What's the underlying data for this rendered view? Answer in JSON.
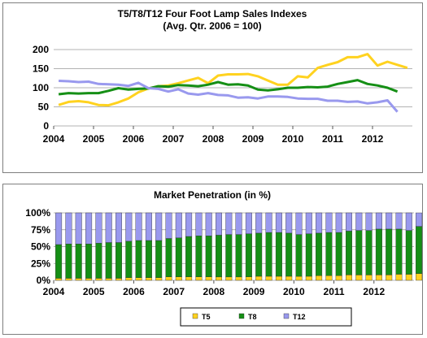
{
  "chart_data": [
    {
      "type": "line",
      "title": "T5/T8/T12 Four Foot Lamp Sales Indexes",
      "subtitle": "(Avg. Qtr. 2006 = 100)",
      "x_labels": [
        "2004",
        "2005",
        "2006",
        "2007",
        "2008",
        "2009",
        "2010",
        "2011",
        "2012"
      ],
      "y_ticks": [
        0,
        50,
        100,
        150,
        200
      ],
      "ylim": [
        0,
        200
      ],
      "grid": "horizontal",
      "series": [
        {
          "key": "t5",
          "color": "#FFD21F",
          "values": [
            55,
            63,
            65,
            62,
            55,
            54,
            62,
            72,
            88,
            98,
            104,
            106,
            112,
            119,
            126,
            112,
            132,
            135,
            135,
            136,
            130,
            119,
            108,
            108,
            130,
            127,
            152,
            160,
            167,
            180,
            180,
            188,
            158,
            168,
            160,
            152
          ]
        },
        {
          "key": "t8",
          "color": "#158F15",
          "values": [
            83,
            86,
            85,
            86,
            86,
            92,
            99,
            95,
            97,
            98,
            104,
            103,
            107,
            106,
            104,
            108,
            115,
            108,
            109,
            106,
            95,
            93,
            96,
            100,
            100,
            102,
            101,
            103,
            110,
            115,
            120,
            110,
            106,
            100,
            90
          ]
        },
        {
          "key": "t12",
          "color": "#9999EE",
          "values": [
            118,
            117,
            115,
            116,
            110,
            109,
            108,
            105,
            113,
            99,
            97,
            90,
            96,
            85,
            82,
            86,
            81,
            80,
            74,
            75,
            72,
            77,
            77,
            76,
            72,
            71,
            71,
            66,
            66,
            63,
            64,
            59,
            62,
            67,
            37
          ]
        }
      ]
    },
    {
      "type": "bar",
      "stacked": true,
      "title": "Market Penetration (in %)",
      "x_labels": [
        "2004",
        "2005",
        "2006",
        "2007",
        "2008",
        "2009",
        "2010",
        "2011",
        "2012"
      ],
      "y_ticks": [
        "0%",
        "25%",
        "50%",
        "75%",
        "100%"
      ],
      "ylim": [
        0,
        100
      ],
      "grid": "horizontal",
      "legend_position": "bottom",
      "series": [
        {
          "name": "T5",
          "color": "#FFD21F",
          "values": [
            3,
            3,
            3,
            3,
            3,
            3,
            3,
            4,
            4,
            4,
            4,
            5,
            5,
            5,
            5,
            5,
            5,
            5,
            5,
            5,
            6,
            6,
            6,
            6,
            6,
            6,
            7,
            7,
            7,
            8,
            8,
            8,
            8,
            8,
            9,
            9,
            10
          ]
        },
        {
          "name": "T8",
          "color": "#158F15",
          "values": [
            50,
            51,
            51,
            51,
            52,
            53,
            53,
            54,
            55,
            55,
            55,
            57,
            58,
            60,
            61,
            61,
            62,
            63,
            63,
            64,
            64,
            65,
            65,
            64,
            62,
            63,
            63,
            64,
            64,
            65,
            66,
            66,
            68,
            68,
            67,
            65,
            70
          ]
        },
        {
          "name": "T12",
          "color": "#9999EE",
          "values": [
            47,
            46,
            46,
            46,
            45,
            44,
            44,
            42,
            41,
            41,
            41,
            38,
            37,
            35,
            34,
            34,
            33,
            32,
            32,
            31,
            30,
            29,
            29,
            30,
            32,
            31,
            30,
            29,
            29,
            27,
            26,
            26,
            24,
            24,
            24,
            26,
            20
          ]
        }
      ]
    }
  ]
}
